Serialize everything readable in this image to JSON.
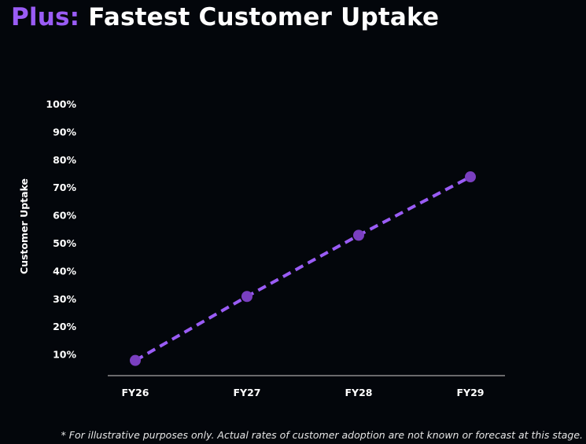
{
  "title": {
    "accent": "Plus:",
    "main": "Fastest Customer Uptake"
  },
  "footnote": "* For illustrative purposes only. Actual rates of customer adoption are not known or forecast at this stage.",
  "colors": {
    "accent": "#9a5cf5",
    "marker": "#7a3fc0",
    "background": "#03060b",
    "axis": "#8c8c8c"
  },
  "chart_data": {
    "type": "line",
    "title": "Fastest Customer Uptake",
    "xlabel": "",
    "ylabel": "Customer Uptake",
    "categories": [
      "FY26",
      "FY27",
      "FY28",
      "FY29"
    ],
    "yticks": [
      "10%",
      "20%",
      "30%",
      "40%",
      "50%",
      "60%",
      "70%",
      "80%",
      "90%",
      "100%"
    ],
    "ylim": [
      0,
      100
    ],
    "series": [
      {
        "values": [
          8,
          31,
          53,
          74
        ],
        "style": "dashed",
        "markers": true
      }
    ],
    "grid": false,
    "legend": "none"
  }
}
